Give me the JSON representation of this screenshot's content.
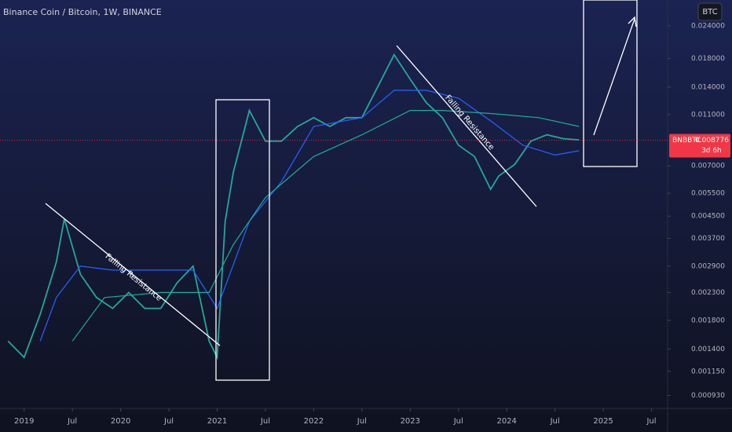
{
  "chart_data": {
    "type": "line",
    "title": "Binance Coin / Bitcoin, 1W, BINANCE",
    "currency": "BTC",
    "symbol": "BNBBTC",
    "countdown": "3d 6h",
    "last_price": {
      "value": 0.008776,
      "label": "0.008776"
    },
    "annotations": [
      "Falling Resistance",
      "Falling Resistance"
    ],
    "log": true,
    "xlim": [
      "2018-10",
      "2025-09"
    ],
    "xticks": [
      {
        "value": "2019-01",
        "label": "2019"
      },
      {
        "value": "2019-07",
        "label": "Jul"
      },
      {
        "value": "2020-01",
        "label": "2020"
      },
      {
        "value": "2020-07",
        "label": "Jul"
      },
      {
        "value": "2021-01",
        "label": "2021"
      },
      {
        "value": "2021-07",
        "label": "Jul"
      },
      {
        "value": "2022-01",
        "label": "2022"
      },
      {
        "value": "2022-07",
        "label": "Jul"
      },
      {
        "value": "2023-01",
        "label": "2023"
      },
      {
        "value": "2023-07",
        "label": "Jul"
      },
      {
        "value": "2024-01",
        "label": "2024"
      },
      {
        "value": "2024-07",
        "label": "Jul"
      },
      {
        "value": "2025-01",
        "label": "2025"
      },
      {
        "value": "2025-07",
        "label": "Jul"
      }
    ],
    "ylim": [
      0.00083,
      0.0301
    ],
    "yticks": [
      {
        "value": 0.024,
        "label": "0.024000"
      },
      {
        "value": 0.018,
        "label": "0.018000"
      },
      {
        "value": 0.014,
        "label": "0.014000"
      },
      {
        "value": 0.011,
        "label": "0.011000"
      },
      {
        "value": 0.007,
        "label": "0.007000"
      },
      {
        "value": 0.0055,
        "label": "0.005500"
      },
      {
        "value": 0.0045,
        "label": "0.004500"
      },
      {
        "value": 0.0037,
        "label": "0.003700"
      },
      {
        "value": 0.0029,
        "label": "0.002900"
      },
      {
        "value": 0.0023,
        "label": "0.002300"
      },
      {
        "value": 0.0018,
        "label": "0.001800"
      },
      {
        "value": 0.0014,
        "label": "0.001400"
      },
      {
        "value": 0.00115,
        "label": "0.001150"
      },
      {
        "value": 0.00093,
        "label": "0.000930"
      }
    ],
    "series": [
      {
        "color": "#26a69a",
        "x": [
          "2018-11",
          "2019-01",
          "2019-03",
          "2019-05",
          "2019-06",
          "2019-08",
          "2019-10",
          "2019-12",
          "2020-02",
          "2020-04",
          "2020-06",
          "2020-08",
          "2020-10",
          "2020-12",
          "2021-01",
          "2021-02",
          "2021-03",
          "2021-05",
          "2021-07",
          "2021-09",
          "2021-11",
          "2022-01",
          "2022-03",
          "2022-05",
          "2022-07",
          "2022-09",
          "2022-11",
          "2023-01",
          "2023-03",
          "2023-05",
          "2023-07",
          "2023-09",
          "2023-11",
          "2023-12",
          "2024-02",
          "2024-04",
          "2024-06",
          "2024-08",
          "2024-10"
        ],
        "values": [
          0.0015,
          0.0013,
          0.0019,
          0.003,
          0.0044,
          0.0027,
          0.0022,
          0.002,
          0.0023,
          0.002,
          0.002,
          0.0025,
          0.0029,
          0.0015,
          0.0013,
          0.0043,
          0.0066,
          0.0114,
          0.0087,
          0.0087,
          0.0099,
          0.0107,
          0.0099,
          0.0107,
          0.0107,
          0.0141,
          0.0186,
          0.015,
          0.0122,
          0.0107,
          0.0084,
          0.0076,
          0.0057,
          0.0064,
          0.0071,
          0.0087,
          0.0092,
          0.0089,
          0.0088
        ]
      },
      {
        "color": "#2962ff",
        "x": [
          "2019-03",
          "2019-05",
          "2019-08",
          "2019-12",
          "2020-06",
          "2020-10",
          "2021-01",
          "2021-05",
          "2021-09",
          "2022-01",
          "2022-07",
          "2022-11",
          "2023-03",
          "2023-07",
          "2023-11",
          "2024-03",
          "2024-07",
          "2024-10"
        ],
        "values": [
          0.0015,
          0.0022,
          0.0029,
          0.0028,
          0.0028,
          0.0028,
          0.002,
          0.0043,
          0.0061,
          0.0099,
          0.0107,
          0.0136,
          0.0136,
          0.0127,
          0.0104,
          0.0084,
          0.0077,
          0.008
        ]
      },
      {
        "color": "#22ab94",
        "x": [
          "2019-07",
          "2019-11",
          "2020-06",
          "2020-12",
          "2021-03",
          "2021-07",
          "2022-01",
          "2022-07",
          "2023-01",
          "2023-05",
          "2023-11",
          "2024-05",
          "2024-10"
        ],
        "values": [
          0.0015,
          0.0022,
          0.0023,
          0.0023,
          0.0035,
          0.0053,
          0.0076,
          0.0092,
          0.0114,
          0.0114,
          0.0111,
          0.0107,
          0.0099
        ]
      }
    ]
  }
}
